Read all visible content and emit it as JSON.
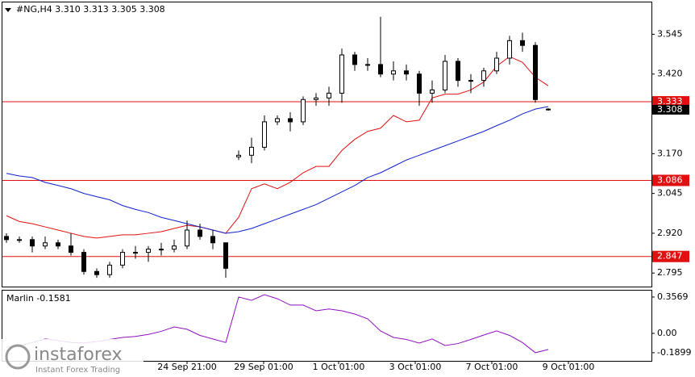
{
  "chart_data": [
    {
      "type": "candlestick",
      "title": "#NG,H4  3.310 3.313 3.305 3.308",
      "open": [
        2.91,
        2.9,
        2.9,
        2.88,
        2.89,
        2.88,
        2.86,
        2.8,
        2.79,
        2.82,
        2.86,
        2.86,
        2.87,
        2.87,
        2.88,
        2.93,
        2.91,
        2.89,
        3.16,
        3.165,
        3.19,
        3.27,
        3.28,
        3.27,
        3.34,
        3.345,
        3.36,
        3.48,
        3.45,
        3.45,
        3.42,
        3.43,
        3.42,
        3.36,
        3.37,
        3.46,
        3.4,
        3.4,
        3.43,
        3.47,
        3.525,
        3.51,
        3.31
      ],
      "high": [
        2.92,
        2.91,
        2.91,
        2.91,
        2.9,
        2.92,
        2.87,
        2.81,
        2.83,
        2.87,
        2.88,
        2.88,
        2.89,
        2.9,
        2.96,
        2.95,
        2.93,
        2.89,
        3.18,
        3.22,
        3.29,
        3.29,
        3.3,
        3.35,
        3.36,
        3.38,
        3.5,
        3.49,
        3.47,
        3.6,
        3.46,
        3.45,
        3.43,
        3.4,
        3.48,
        3.47,
        3.42,
        3.44,
        3.49,
        3.54,
        3.55,
        3.52,
        3.313
      ],
      "low": [
        2.89,
        2.89,
        2.86,
        2.87,
        2.87,
        2.85,
        2.79,
        2.78,
        2.78,
        2.81,
        2.84,
        2.83,
        2.85,
        2.86,
        2.87,
        2.9,
        2.87,
        2.78,
        3.15,
        3.14,
        3.18,
        3.26,
        3.24,
        3.26,
        3.32,
        3.32,
        3.33,
        3.43,
        3.43,
        3.41,
        3.4,
        3.4,
        3.32,
        3.33,
        3.36,
        3.38,
        3.36,
        3.38,
        3.42,
        3.45,
        3.49,
        3.33,
        3.305
      ],
      "close": [
        2.9,
        2.9,
        2.88,
        2.89,
        2.88,
        2.86,
        2.8,
        2.79,
        2.82,
        2.86,
        2.86,
        2.87,
        2.87,
        2.88,
        2.93,
        2.91,
        2.89,
        2.81,
        3.165,
        3.19,
        3.27,
        3.28,
        3.27,
        3.34,
        3.345,
        3.36,
        3.48,
        3.45,
        3.45,
        3.42,
        3.43,
        3.42,
        3.36,
        3.37,
        3.46,
        3.4,
        3.4,
        3.43,
        3.47,
        3.525,
        3.51,
        3.34,
        3.308
      ],
      "lines": [
        {
          "color": "#e01010",
          "values": [
            2.975,
            2.957,
            2.95,
            2.94,
            2.93,
            2.92,
            2.91,
            2.905,
            2.91,
            2.915,
            2.915,
            2.92,
            2.925,
            2.935,
            2.945,
            2.94,
            2.93,
            2.92,
            2.97,
            3.06,
            3.075,
            3.06,
            3.08,
            3.11,
            3.13,
            3.13,
            3.18,
            3.215,
            3.24,
            3.25,
            3.29,
            3.27,
            3.275,
            3.345,
            3.357,
            3.357,
            3.37,
            3.395,
            3.445,
            3.475,
            3.457,
            3.41,
            3.383
          ]
        },
        {
          "color": "#1020d0",
          "values": [
            3.108,
            3.1,
            3.095,
            3.08,
            3.07,
            3.06,
            3.045,
            3.035,
            3.025,
            3.007,
            2.995,
            2.985,
            2.97,
            2.96,
            2.95,
            2.94,
            2.93,
            2.92,
            2.925,
            2.935,
            2.95,
            2.965,
            2.98,
            2.995,
            3.01,
            3.03,
            3.05,
            3.07,
            3.095,
            3.11,
            3.13,
            3.15,
            3.165,
            3.18,
            3.195,
            3.21,
            3.225,
            3.24,
            3.258,
            3.275,
            3.295,
            3.31,
            3.318
          ]
        }
      ],
      "levels": [
        {
          "value": 3.333,
          "color": "#e01010"
        },
        {
          "value": 3.086,
          "color": "#e01010"
        },
        {
          "value": 2.847,
          "color": "#e01010"
        }
      ],
      "last_price": 3.308,
      "ylim": [
        2.7525,
        3.645
      ],
      "yticks": [
        {
          "value": 3.545,
          "label": "3.545"
        },
        {
          "value": 3.42,
          "label": "3.420"
        },
        {
          "value": 3.17,
          "label": "3.170"
        },
        {
          "value": 3.045,
          "label": "3.045"
        },
        {
          "value": 2.92,
          "label": "2.920"
        },
        {
          "value": 2.795,
          "label": "2.795"
        }
      ],
      "xtick_labels": [
        "24 Sep 21:00",
        "29 Sep 01:00",
        "1 Oct 01:00",
        "3 Oct 01:00",
        "7 Oct 01:00",
        "9 Oct 01:00"
      ]
    },
    {
      "type": "line",
      "title": "Marlin -0.1581",
      "color": "#9010c0",
      "values": [
        -0.135,
        -0.12,
        -0.09,
        -0.055,
        -0.07,
        -0.09,
        -0.095,
        -0.08,
        -0.06,
        -0.04,
        -0.03,
        -0.01,
        0.02,
        0.063,
        0.04,
        -0.02,
        -0.055,
        -0.09,
        0.357,
        0.325,
        0.38,
        0.34,
        0.278,
        0.278,
        0.222,
        0.24,
        0.222,
        0.19,
        0.143,
        0.024,
        -0.04,
        -0.06,
        -0.095,
        -0.055,
        -0.119,
        -0.1,
        -0.06,
        -0.016,
        0.024,
        -0.02,
        -0.09,
        -0.19,
        -0.1581
      ],
      "ylim": [
        -0.27,
        0.42
      ],
      "yticks": [
        {
          "value": 0.3569,
          "label": "0.3569"
        },
        {
          "value": 0,
          "label": "0.00"
        },
        {
          "value": -0.1899,
          "label": "-0.1899"
        }
      ]
    }
  ],
  "logo": {
    "name": "instaforex",
    "tagline": "Instant Forex Trading"
  }
}
